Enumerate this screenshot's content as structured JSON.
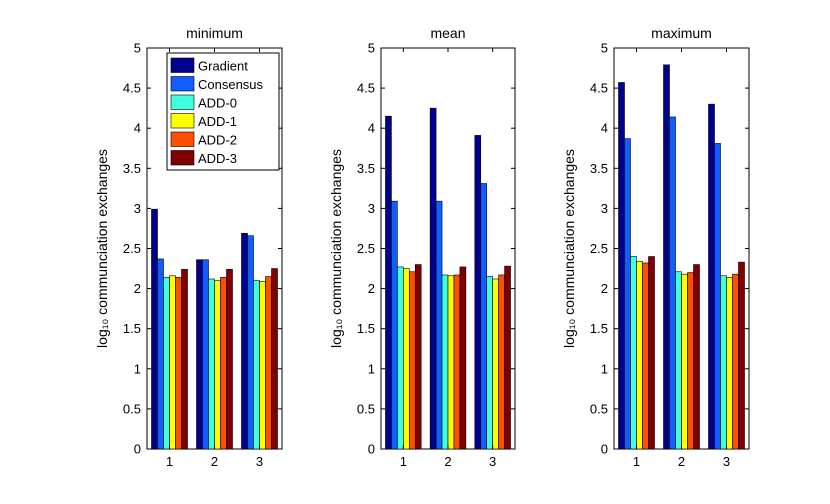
{
  "chart_data": [
    {
      "type": "bar",
      "title": "minimum",
      "ylabel": "log₁₀ communciation exchanges",
      "categories": [
        "1",
        "2",
        "3"
      ],
      "ylim": [
        0,
        5
      ],
      "yticks": [
        "0",
        "0.5",
        "1",
        "1.5",
        "2",
        "2.5",
        "3",
        "3.5",
        "4",
        "4.5",
        "5"
      ],
      "legend": "top-left",
      "series": [
        {
          "name": "Gradient",
          "values": [
            2.99,
            2.36,
            2.69
          ]
        },
        {
          "name": "Consensus",
          "values": [
            2.37,
            2.36,
            2.66
          ]
        },
        {
          "name": "ADD-0",
          "values": [
            2.14,
            2.12,
            2.1
          ]
        },
        {
          "name": "ADD-1",
          "values": [
            2.16,
            2.1,
            2.09
          ]
        },
        {
          "name": "ADD-2",
          "values": [
            2.14,
            2.14,
            2.15
          ]
        },
        {
          "name": "ADD-3",
          "values": [
            2.24,
            2.24,
            2.25
          ]
        }
      ]
    },
    {
      "type": "bar",
      "title": "mean",
      "ylabel": "log₁₀ communciation exchanges",
      "categories": [
        "1",
        "2",
        "3"
      ],
      "ylim": [
        0,
        5
      ],
      "yticks": [
        "0",
        "0.5",
        "1",
        "1.5",
        "2",
        "2.5",
        "3",
        "3.5",
        "4",
        "4.5",
        "5"
      ],
      "series": [
        {
          "name": "Gradient",
          "values": [
            4.15,
            4.25,
            3.91
          ]
        },
        {
          "name": "Consensus",
          "values": [
            3.09,
            3.09,
            3.31
          ]
        },
        {
          "name": "ADD-0",
          "values": [
            2.27,
            2.17,
            2.15
          ]
        },
        {
          "name": "ADD-1",
          "values": [
            2.25,
            2.16,
            2.12
          ]
        },
        {
          "name": "ADD-2",
          "values": [
            2.21,
            2.17,
            2.17
          ]
        },
        {
          "name": "ADD-3",
          "values": [
            2.3,
            2.27,
            2.28
          ]
        }
      ]
    },
    {
      "type": "bar",
      "title": "maximum",
      "ylabel": "log₁₀ communciation exchanges",
      "categories": [
        "1",
        "2",
        "3"
      ],
      "ylim": [
        0,
        5
      ],
      "yticks": [
        "0",
        "0.5",
        "1",
        "1.5",
        "2",
        "2.5",
        "3",
        "3.5",
        "4",
        "4.5",
        "5"
      ],
      "series": [
        {
          "name": "Gradient",
          "values": [
            4.57,
            4.79,
            4.3
          ]
        },
        {
          "name": "Consensus",
          "values": [
            3.87,
            4.14,
            3.81
          ]
        },
        {
          "name": "ADD-0",
          "values": [
            2.4,
            2.21,
            2.16
          ]
        },
        {
          "name": "ADD-1",
          "values": [
            2.34,
            2.18,
            2.14
          ]
        },
        {
          "name": "ADD-2",
          "values": [
            2.32,
            2.2,
            2.18
          ]
        },
        {
          "name": "ADD-3",
          "values": [
            2.4,
            2.3,
            2.33
          ]
        }
      ]
    }
  ],
  "colors": [
    "#00008f",
    "#0f5fff",
    "#40ffe0",
    "#ffff00",
    "#ff5000",
    "#800000"
  ]
}
